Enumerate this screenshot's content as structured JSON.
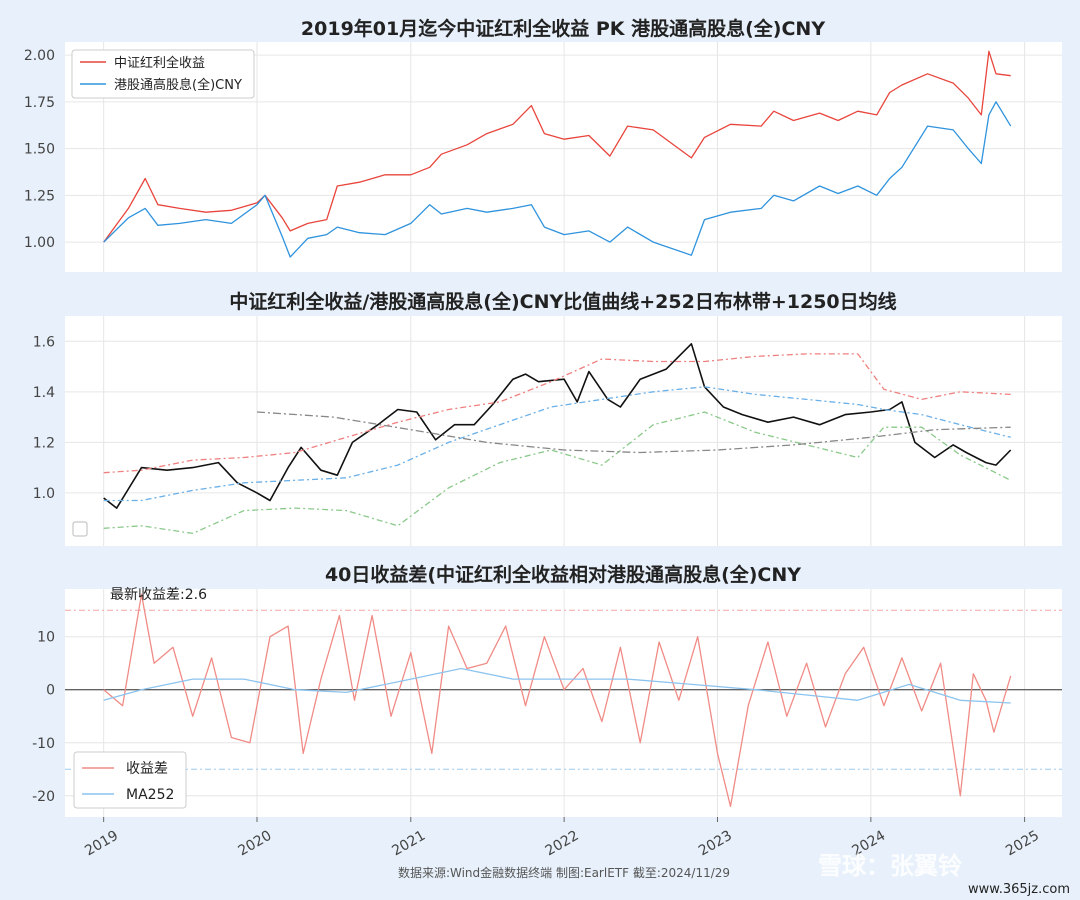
{
  "chart_data": [
    {
      "type": "line",
      "title": "2019年01月迄今中证红利全收益 PK 港股通高股息(全)CNY",
      "legend_position": "top-left",
      "grid": true,
      "ylim": [
        0.84,
        2.07
      ],
      "yticks": [
        "1.00",
        "1.25",
        "1.50",
        "1.75",
        "2.00"
      ],
      "series": [
        {
          "name": "中证红利全收益",
          "color": "#e8453c",
          "x": [
            "2019-01-01",
            "2019-03-01",
            "2019-04-10",
            "2019-05-10",
            "2019-07-01",
            "2019-09-01",
            "2019-11-01",
            "2020-01-01",
            "2020-01-20",
            "2020-03-01",
            "2020-03-20",
            "2020-05-01",
            "2020-06-15",
            "2020-07-10",
            "2020-09-01",
            "2020-11-01",
            "2021-01-01",
            "2021-02-15",
            "2021-03-15",
            "2021-05-15",
            "2021-07-01",
            "2021-09-01",
            "2021-10-15",
            "2021-11-15",
            "2022-01-01",
            "2022-03-01",
            "2022-04-20",
            "2022-06-01",
            "2022-08-01",
            "2022-10-31",
            "2022-12-01",
            "2023-02-01",
            "2023-04-15",
            "2023-05-15",
            "2023-07-01",
            "2023-09-01",
            "2023-10-15",
            "2023-12-01",
            "2024-01-15",
            "2024-02-15",
            "2024-03-15",
            "2024-05-15",
            "2024-07-15",
            "2024-08-20",
            "2024-09-20",
            "2024-10-08",
            "2024-10-25",
            "2024-11-29"
          ],
          "y": [
            1.0,
            1.18,
            1.34,
            1.2,
            1.18,
            1.16,
            1.17,
            1.21,
            1.25,
            1.13,
            1.06,
            1.1,
            1.12,
            1.3,
            1.32,
            1.36,
            1.36,
            1.4,
            1.47,
            1.52,
            1.58,
            1.63,
            1.73,
            1.58,
            1.55,
            1.57,
            1.46,
            1.62,
            1.6,
            1.45,
            1.56,
            1.63,
            1.62,
            1.7,
            1.65,
            1.69,
            1.65,
            1.7,
            1.68,
            1.8,
            1.84,
            1.9,
            1.85,
            1.77,
            1.68,
            2.02,
            1.9,
            1.89
          ]
        },
        {
          "name": "港股通高股息(全)CNY",
          "color": "#2f93dd",
          "x": [
            "2019-01-01",
            "2019-03-01",
            "2019-04-10",
            "2019-05-10",
            "2019-07-01",
            "2019-09-01",
            "2019-11-01",
            "2020-01-01",
            "2020-01-20",
            "2020-03-01",
            "2020-03-20",
            "2020-05-01",
            "2020-06-15",
            "2020-07-10",
            "2020-09-01",
            "2020-11-01",
            "2021-01-01",
            "2021-02-15",
            "2021-03-15",
            "2021-05-15",
            "2021-07-01",
            "2021-09-01",
            "2021-10-15",
            "2021-11-15",
            "2022-01-01",
            "2022-03-01",
            "2022-04-20",
            "2022-06-01",
            "2022-08-01",
            "2022-10-31",
            "2022-12-01",
            "2023-02-01",
            "2023-04-15",
            "2023-05-15",
            "2023-07-01",
            "2023-09-01",
            "2023-10-15",
            "2023-12-01",
            "2024-01-15",
            "2024-02-15",
            "2024-03-15",
            "2024-05-15",
            "2024-07-15",
            "2024-08-20",
            "2024-09-20",
            "2024-10-08",
            "2024-10-25",
            "2024-11-29"
          ],
          "y": [
            1.0,
            1.13,
            1.18,
            1.09,
            1.1,
            1.12,
            1.1,
            1.2,
            1.25,
            1.03,
            0.92,
            1.02,
            1.04,
            1.08,
            1.05,
            1.04,
            1.1,
            1.2,
            1.15,
            1.18,
            1.16,
            1.18,
            1.2,
            1.08,
            1.04,
            1.06,
            1.0,
            1.08,
            1.0,
            0.93,
            1.12,
            1.16,
            1.18,
            1.25,
            1.22,
            1.3,
            1.26,
            1.3,
            1.25,
            1.34,
            1.4,
            1.62,
            1.6,
            1.5,
            1.42,
            1.68,
            1.75,
            1.62
          ]
        }
      ]
    },
    {
      "type": "line",
      "title": "中证红利全收益/港股通高股息(全)CNY比值曲线+252日布林带+1250日均线",
      "grid": true,
      "ylim": [
        0.79,
        1.7
      ],
      "yticks": [
        "1.0",
        "1.2",
        "1.4",
        "1.6"
      ],
      "series": [
        {
          "role": "ratio",
          "color": "#111111",
          "dash": "",
          "x": [
            "2019-01-01",
            "2019-02-01",
            "2019-04-01",
            "2019-06-01",
            "2019-08-01",
            "2019-10-01",
            "2019-11-15",
            "2020-01-01",
            "2020-02-01",
            "2020-03-15",
            "2020-04-15",
            "2020-06-01",
            "2020-07-10",
            "2020-08-15",
            "2020-10-15",
            "2020-12-01",
            "2021-01-15",
            "2021-03-01",
            "2021-04-15",
            "2021-06-01",
            "2021-07-15",
            "2021-09-01",
            "2021-10-01",
            "2021-11-01",
            "2022-01-01",
            "2022-02-01",
            "2022-03-01",
            "2022-04-15",
            "2022-05-15",
            "2022-07-01",
            "2022-09-01",
            "2022-10-31",
            "2022-12-01",
            "2023-01-15",
            "2023-03-01",
            "2023-05-01",
            "2023-07-01",
            "2023-09-01",
            "2023-11-01",
            "2024-01-01",
            "2024-02-15",
            "2024-03-15",
            "2024-04-15",
            "2024-06-01",
            "2024-07-15",
            "2024-08-15",
            "2024-10-01",
            "2024-10-25",
            "2024-11-29"
          ],
          "y": [
            0.98,
            0.94,
            1.1,
            1.09,
            1.1,
            1.12,
            1.04,
            1.0,
            0.97,
            1.1,
            1.18,
            1.09,
            1.07,
            1.2,
            1.27,
            1.33,
            1.32,
            1.21,
            1.27,
            1.27,
            1.35,
            1.45,
            1.47,
            1.44,
            1.45,
            1.36,
            1.48,
            1.37,
            1.34,
            1.45,
            1.49,
            1.59,
            1.42,
            1.34,
            1.31,
            1.28,
            1.3,
            1.27,
            1.31,
            1.32,
            1.33,
            1.36,
            1.2,
            1.14,
            1.19,
            1.16,
            1.12,
            1.11,
            1.17
          ]
        },
        {
          "role": "bollinger-upper",
          "color": "#f08080",
          "dash": "6 3 2 3",
          "x": [
            "2019-01-01",
            "2019-04-01",
            "2019-08-01",
            "2019-12-01",
            "2020-04-01",
            "2020-08-01",
            "2020-12-01",
            "2021-04-01",
            "2021-08-01",
            "2021-12-01",
            "2022-04-01",
            "2022-08-01",
            "2022-12-01",
            "2023-04-01",
            "2023-08-01",
            "2023-12-01",
            "2024-02-01",
            "2024-05-01",
            "2024-08-01",
            "2024-11-29"
          ],
          "y": [
            1.08,
            1.09,
            1.13,
            1.14,
            1.16,
            1.22,
            1.28,
            1.33,
            1.36,
            1.44,
            1.53,
            1.52,
            1.52,
            1.54,
            1.55,
            1.55,
            1.41,
            1.37,
            1.4,
            1.39
          ]
        },
        {
          "role": "bollinger-middle",
          "color": "#6ab0e8",
          "dash": "6 3 2 3",
          "x": [
            "2019-01-01",
            "2019-04-01",
            "2019-08-01",
            "2019-12-01",
            "2020-04-01",
            "2020-08-01",
            "2020-12-01",
            "2021-04-01",
            "2021-08-01",
            "2021-12-01",
            "2022-04-01",
            "2022-08-01",
            "2022-12-01",
            "2023-04-01",
            "2023-08-01",
            "2023-12-01",
            "2024-02-01",
            "2024-05-01",
            "2024-08-01",
            "2024-11-29"
          ],
          "y": [
            0.97,
            0.97,
            1.01,
            1.04,
            1.05,
            1.06,
            1.11,
            1.2,
            1.27,
            1.34,
            1.37,
            1.4,
            1.42,
            1.39,
            1.37,
            1.35,
            1.33,
            1.31,
            1.27,
            1.22
          ]
        },
        {
          "role": "bollinger-lower",
          "color": "#8bc98b",
          "dash": "6 3 2 3",
          "x": [
            "2019-01-01",
            "2019-04-01",
            "2019-08-01",
            "2019-12-01",
            "2020-04-01",
            "2020-08-01",
            "2020-12-01",
            "2021-04-01",
            "2021-08-01",
            "2021-12-01",
            "2022-04-01",
            "2022-08-01",
            "2022-12-01",
            "2023-04-01",
            "2023-08-01",
            "2023-12-01",
            "2024-02-01",
            "2024-05-01",
            "2024-08-01",
            "2024-11-29"
          ],
          "y": [
            0.86,
            0.87,
            0.84,
            0.93,
            0.94,
            0.93,
            0.87,
            1.02,
            1.12,
            1.17,
            1.11,
            1.27,
            1.32,
            1.24,
            1.19,
            1.14,
            1.26,
            1.26,
            1.15,
            1.05
          ]
        },
        {
          "role": "ma1250",
          "color": "#888888",
          "dash": "8 3 2 3",
          "x": [
            "2020-01-01",
            "2020-07-01",
            "2021-01-01",
            "2021-07-01",
            "2022-01-01",
            "2022-07-01",
            "2023-01-01",
            "2023-07-01",
            "2024-01-01",
            "2024-06-01",
            "2024-11-29"
          ],
          "y": [
            1.32,
            1.3,
            1.25,
            1.2,
            1.17,
            1.16,
            1.17,
            1.19,
            1.22,
            1.25,
            1.26
          ]
        }
      ]
    },
    {
      "type": "line",
      "title": "40日收益差(中证红利全收益相对港股通高股息(全)CNY",
      "annotation": "最新收益差:2.6",
      "legend_position": "bottom-left",
      "grid": true,
      "ylim": [
        -24,
        19
      ],
      "yticks": [
        "10",
        "0",
        "-10",
        "-20"
      ],
      "hlines": [
        {
          "y": 15,
          "color": "#f4a6a6"
        },
        {
          "y": 0,
          "color": "#333333"
        },
        {
          "y": -15,
          "color": "#9ecbee"
        }
      ],
      "xticks": [
        "2019",
        "2020",
        "2021",
        "2022",
        "2023",
        "2024",
        "2025"
      ],
      "series": [
        {
          "name": "收益差",
          "color": "#f08b85",
          "x": [
            "2019-01-01",
            "2019-02-15",
            "2019-04-01",
            "2019-05-01",
            "2019-06-15",
            "2019-08-01",
            "2019-09-15",
            "2019-11-01",
            "2019-12-15",
            "2020-02-01",
            "2020-03-15",
            "2020-04-20",
            "2020-06-01",
            "2020-07-15",
            "2020-08-20",
            "2020-10-01",
            "2020-11-15",
            "2021-01-01",
            "2021-02-20",
            "2021-04-01",
            "2021-05-15",
            "2021-07-01",
            "2021-08-15",
            "2021-10-01",
            "2021-11-15",
            "2022-01-01",
            "2022-02-15",
            "2022-04-01",
            "2022-05-15",
            "2022-07-01",
            "2022-08-15",
            "2022-10-01",
            "2022-11-15",
            "2023-01-01",
            "2023-02-01",
            "2023-03-15",
            "2023-05-01",
            "2023-06-15",
            "2023-08-01",
            "2023-09-15",
            "2023-11-01",
            "2023-12-15",
            "2024-02-01",
            "2024-03-15",
            "2024-05-01",
            "2024-06-15",
            "2024-08-01",
            "2024-09-01",
            "2024-10-01",
            "2024-10-20",
            "2024-11-29"
          ],
          "y": [
            0,
            -3,
            18,
            5,
            8,
            -5,
            6,
            -9,
            -10,
            10,
            12,
            -12,
            2,
            14,
            -2,
            14,
            -5,
            7,
            -12,
            12,
            4,
            5,
            12,
            -3,
            10,
            0,
            4,
            -6,
            8,
            -10,
            9,
            -2,
            10,
            -12,
            -22,
            -3,
            9,
            -5,
            5,
            -7,
            3,
            8,
            -3,
            6,
            -4,
            5,
            -20,
            3,
            -2,
            -8,
            2.6
          ]
        },
        {
          "name": "MA252",
          "color": "#8cc4ef",
          "x": [
            "2019-01-01",
            "2019-04-01",
            "2019-08-01",
            "2019-12-01",
            "2020-04-01",
            "2020-08-01",
            "2021-01-01",
            "2021-05-01",
            "2021-09-01",
            "2022-01-01",
            "2022-06-01",
            "2022-11-01",
            "2023-04-01",
            "2023-08-01",
            "2023-12-01",
            "2024-04-01",
            "2024-08-01",
            "2024-11-29"
          ],
          "y": [
            -2,
            0,
            2,
            2,
            0,
            -0.5,
            2,
            4,
            2,
            2,
            2,
            1,
            0,
            -1,
            -2,
            1,
            -2,
            -2.5
          ]
        }
      ]
    }
  ],
  "footer": "数据来源:Wind金融数据终端  制图:EarlETF 截至:2024/11/29",
  "watermark": {
    "brand": "雪球：张翼铃",
    "site": "www.365jz.com"
  }
}
